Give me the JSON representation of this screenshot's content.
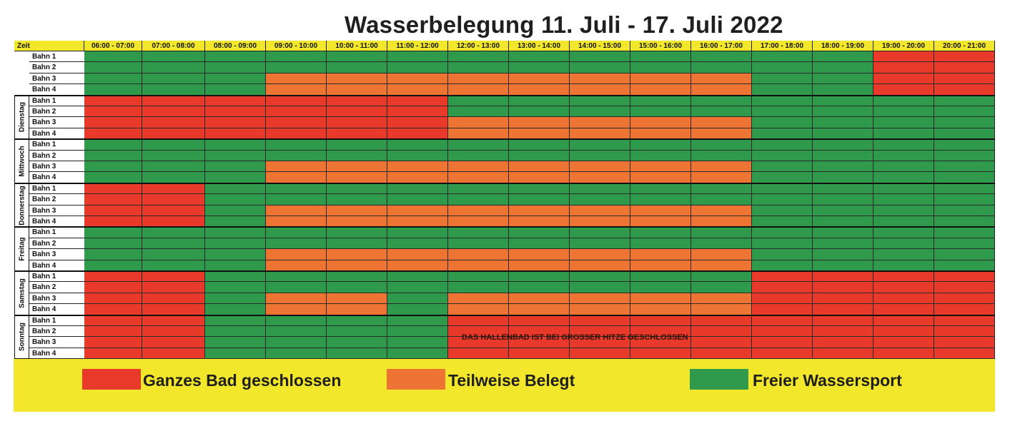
{
  "title": "Wasserbelegung 11. Juli - 17. Juli 2022",
  "colors": {
    "R": "#e8392a",
    "O": "#ee7434",
    "G": "#2f9a4b"
  },
  "header": {
    "zeit": "Zeit",
    "slots": [
      "06:00 - 07:00",
      "07:00 - 08:00",
      "08:00 - 09:00",
      "09:00 - 10:00",
      "10:00 - 11:00",
      "11:00 - 12:00",
      "12:00 - 13:00",
      "13:00 - 14:00",
      "14:00 - 15:00",
      "15:00 - 16:00",
      "16:00 - 17:00",
      "17:00 - 18:00",
      "18:00 - 19:00",
      "19:00 - 20:00",
      "20:00 - 21:00"
    ]
  },
  "lanes": [
    "Bahn 1",
    "Bahn 2",
    "Bahn 3",
    "Bahn 4"
  ],
  "days": [
    {
      "name": "",
      "rows": [
        "GGGGGGGGGGGGGRR",
        "GGGGGGGGGGGGGRR",
        "GGGOOOOOOOOGGRR",
        "GGGOOOOOOOOGGRR"
      ]
    },
    {
      "name": "Dienstag",
      "rows": [
        "RRRRRRGGGGGGGGG",
        "RRRRRRGGGGGGGGG",
        "RRRRRROOOOOGGGG",
        "RRRRRROOOOOGGGG"
      ]
    },
    {
      "name": "Mittwoch",
      "rows": [
        "GGGGGGGGGGGGGGG",
        "GGGGGGGGGGGGGGG",
        "GGGOOOOOOOOGGGG",
        "GGGOOOOOOOOGGGG"
      ]
    },
    {
      "name": "Donnerstag",
      "rows": [
        "RRGGGGGGGGGGGGG",
        "RRGGGGGGGGGGGGG",
        "RRGOOOOOOOOGGGG",
        "RRGOOOOOOOOGGGG"
      ]
    },
    {
      "name": "Freitag",
      "rows": [
        "GGGGGGGGGGGGGGG",
        "GGGGGGGGGGGGGGG",
        "GGGOOOOOOOOGGGG",
        "GGGOOOOOOOOGGGG"
      ]
    },
    {
      "name": "Samstag",
      "rows": [
        "RRGGGGGGGGGRRRR",
        "RRGGGGGGGGGRRRR",
        "RRGOOGOOOOORRRR",
        "RRGOOGOOOOORRRR"
      ]
    },
    {
      "name": "Sonntag",
      "rows": [
        "RRGGGGRRRRRRRRR",
        "RRGGGGRRRRRRRRR",
        "RRGGGGRRRRRRRRR",
        "RRGGGGRRRRRRRRR"
      ]
    }
  ],
  "notice": "DAS HALLENBAD IST BEI GROSSER HITZE GESCHLOSSEN",
  "legend": [
    {
      "color": "#e8392a",
      "label": "Ganzes Bad geschlossen"
    },
    {
      "color": "#ee7434",
      "label": "Teilweise Belegt"
    },
    {
      "color": "#2f9a4b",
      "label": "Freier Wassersport"
    }
  ]
}
